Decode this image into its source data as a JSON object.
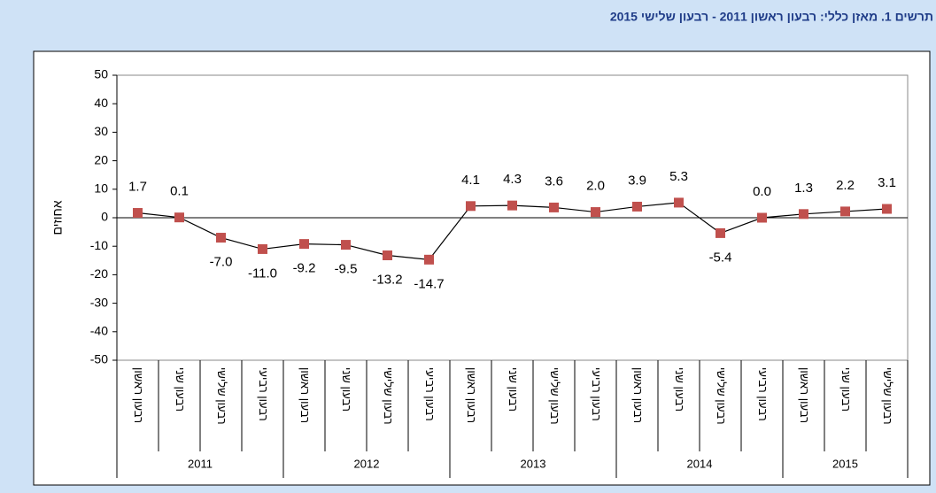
{
  "chart_data": {
    "type": "line",
    "title": "תרשים 1. מאזן כללי: רבעון ראשון 2011 - רבעון שלישי 2015",
    "y_label": "אחוזים",
    "groups": [
      {
        "label": "2011",
        "categories": [
          "רבעון ראשון",
          "רבעון שני",
          "רבעון שלישי",
          "רבעון רביעי"
        ]
      },
      {
        "label": "2012",
        "categories": [
          "רבעון ראשון",
          "רבעון שני",
          "רבעון שלישי",
          "רבעון רביעי"
        ]
      },
      {
        "label": "2013",
        "categories": [
          "רבעון ראשון",
          "רבעון שני",
          "רבעון שלישי",
          "רבעון רביעי"
        ]
      },
      {
        "label": "2014",
        "categories": [
          "רבעון ראשון",
          "רבעון שני",
          "רבעון שלישי",
          "רבעון רביעי"
        ]
      },
      {
        "label": "2015",
        "categories": [
          "רבעון ראשון",
          "רבעון שני",
          "רבעון שלישי"
        ]
      }
    ],
    "series": [
      {
        "color": "#c0504d",
        "line_color": "#000000",
        "values": [
          1.7,
          0.1,
          -7.0,
          -11.0,
          -9.2,
          -9.5,
          -13.2,
          -14.7,
          4.1,
          4.3,
          3.6,
          2.0,
          3.9,
          5.3,
          -5.4,
          0.0,
          1.3,
          2.2,
          3.1
        ],
        "value_labels": [
          "1.7",
          "0.1",
          "-7.0",
          "-11.0",
          "-9.2",
          "-9.5",
          "-13.2",
          "-14.7",
          "4.1",
          "4.3",
          "3.6",
          "2.0",
          "3.9",
          "5.3",
          "-5.4",
          "0.0",
          "1.3",
          "2.2",
          "3.1"
        ]
      }
    ],
    "ylim": [
      -50,
      50
    ],
    "yticks": [
      -50,
      -40,
      -30,
      -20,
      -10,
      0,
      10,
      20,
      30,
      40,
      50
    ]
  }
}
